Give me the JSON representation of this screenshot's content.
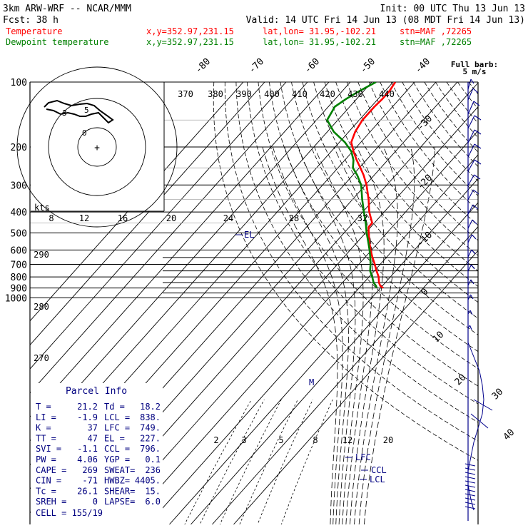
{
  "header": {
    "model": "3km ARW-WRF -- NCAR/MMM",
    "init": "Init: 00 UTC Thu 13 Jun 13",
    "fcst_label": "Fcst:",
    "fcst_value": "38 h",
    "valid": "Valid: 14 UTC Fri 14 Jun 13 (08 MDT Fri 14 Jun 13)",
    "lines": [
      {
        "name": "Temperature",
        "xy": "x,y=352.97,231.15",
        "latlon": "lat,lon= 31.95,-102.21",
        "stn": "stn=MAF ,72265",
        "color": "#ff0000"
      },
      {
        "name": "Dewpoint temperature",
        "xy": "x,y=352.97,231.15",
        "latlon": "lat,lon= 31.95,-102.21",
        "stn": "stn=MAF ,72265",
        "color": "#008000"
      }
    ]
  },
  "wind_header": {
    "line1": "Full barb:",
    "line2": "5 m/s"
  },
  "chart_data": {
    "type": "line",
    "pressure_levels": [
      "100",
      "200",
      "300",
      "400",
      "500",
      "600",
      "700",
      "800",
      "900",
      "1000"
    ],
    "isotherm_labels": [
      "-80",
      "-70",
      "-60",
      "-50",
      "-40",
      "-30",
      "-20",
      "-10",
      "0",
      "10",
      "20",
      "30",
      "40"
    ],
    "theta_labels_top": [
      "370",
      "380",
      "390",
      "400",
      "410",
      "420",
      "430",
      "440"
    ],
    "theta_labels_left": [
      "290",
      "280",
      "270"
    ],
    "hodograph_speed_labels": [
      "8",
      "12",
      "16",
      "20",
      "24",
      "28",
      "32"
    ],
    "hodograph_units": "kts",
    "mixing_ratio_labels": [
      "2",
      "3",
      "5",
      "8",
      "12",
      "20"
    ],
    "parcel_markers": [
      "LFC",
      "CCL",
      "LCL",
      "EL",
      "M"
    ],
    "series": [
      {
        "name": "Temperature",
        "color": "#ff0000",
        "points": [
          [
            900,
            21.2
          ],
          [
            880,
            19.0
          ],
          [
            850,
            17.0
          ],
          [
            800,
            14.5
          ],
          [
            750,
            11.0
          ],
          [
            700,
            7.5
          ],
          [
            650,
            3.5
          ],
          [
            600,
            -0.5
          ],
          [
            550,
            -4.5
          ],
          [
            500,
            -8.5
          ],
          [
            470,
            -11.0
          ],
          [
            450,
            -11.0
          ],
          [
            420,
            -14.5
          ],
          [
            400,
            -17.0
          ],
          [
            350,
            -22.5
          ],
          [
            300,
            -29.5
          ],
          [
            270,
            -35.0
          ],
          [
            250,
            -39.5
          ],
          [
            230,
            -44.5
          ],
          [
            210,
            -49.5
          ],
          [
            190,
            -54.5
          ],
          [
            170,
            -57.0
          ],
          [
            150,
            -58.5
          ],
          [
            130,
            -58.5
          ],
          [
            120,
            -58.0
          ],
          [
            110,
            -58.0
          ],
          [
            100,
            -59.0
          ]
        ]
      },
      {
        "name": "Dewpoint temperature",
        "color": "#008000",
        "points": [
          [
            900,
            18.2
          ],
          [
            880,
            17.0
          ],
          [
            850,
            14.5
          ],
          [
            800,
            11.5
          ],
          [
            750,
            8.0
          ],
          [
            700,
            5.5
          ],
          [
            650,
            2.5
          ],
          [
            600,
            -1.0
          ],
          [
            550,
            -5.0
          ],
          [
            500,
            -9.5
          ],
          [
            450,
            -14.0
          ],
          [
            400,
            -19.5
          ],
          [
            350,
            -25.5
          ],
          [
            300,
            -32.0
          ],
          [
            270,
            -38.0
          ],
          [
            250,
            -43.0
          ],
          [
            230,
            -46.0
          ],
          [
            210,
            -50.5
          ],
          [
            190,
            -57.5
          ],
          [
            170,
            -67.0
          ],
          [
            150,
            -75.0
          ],
          [
            130,
            -77.0
          ],
          [
            120,
            -75.0
          ],
          [
            110,
            -72.0
          ],
          [
            100,
            -68.0
          ]
        ]
      }
    ]
  },
  "parcel": {
    "title": "Parcel Info",
    "rows": [
      [
        "T  =",
        "21.2",
        "Td =",
        "18.2"
      ],
      [
        "LI =",
        "-1.9",
        "LCL =",
        "838."
      ],
      [
        "K  =",
        "37",
        "LFC =",
        "749."
      ],
      [
        "TT =",
        "47",
        "EL  =",
        "227."
      ],
      [
        "SVI =",
        "-1.1",
        "CCL =",
        "796."
      ],
      [
        "PW =",
        "4.06",
        "YGP =",
        "0.1"
      ],
      [
        "CAPE =",
        "269",
        "SWEAT=",
        "236"
      ],
      [
        "CIN =",
        "-71",
        "HWBZ=",
        "4405."
      ],
      [
        "Tc =",
        "26.1",
        "SHEAR=",
        "15."
      ],
      [
        "SREH =",
        "0",
        "LAPSE=",
        "6.0"
      ]
    ],
    "cell": "CELL = 155/19"
  }
}
